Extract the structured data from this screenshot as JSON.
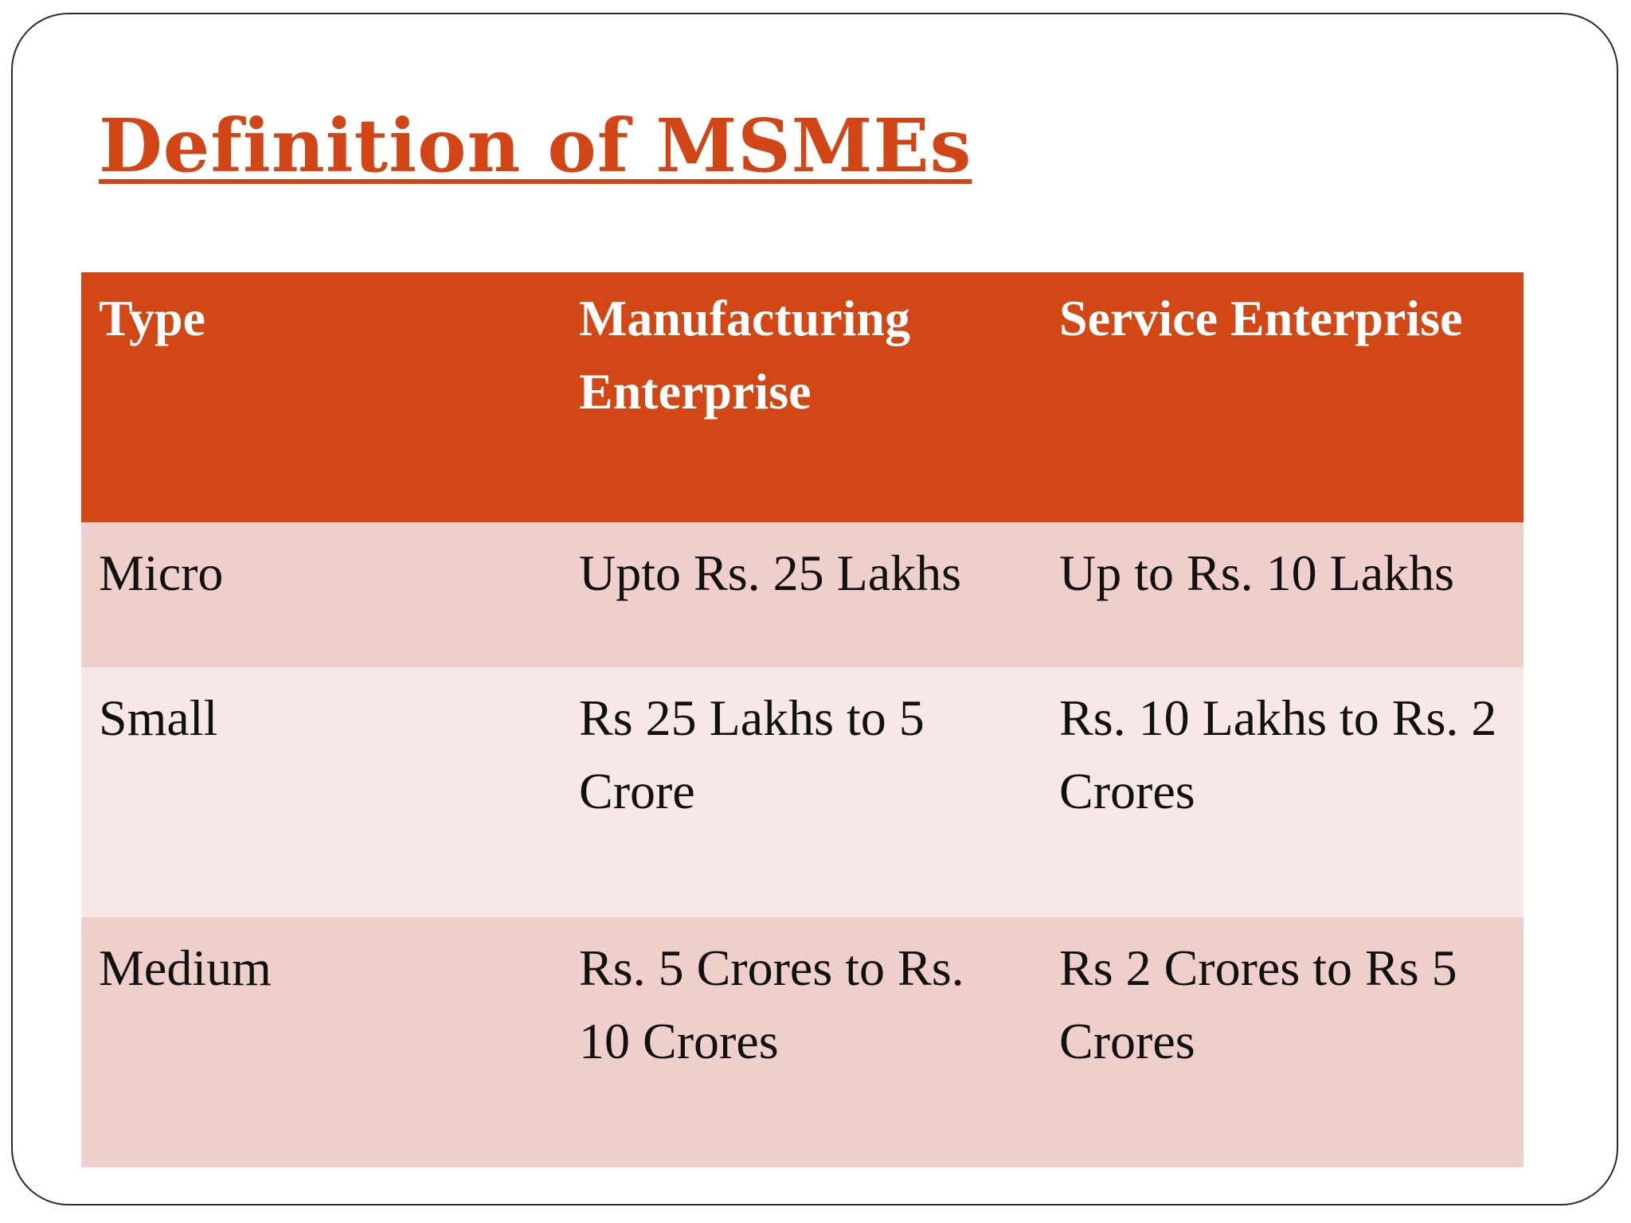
{
  "slide": {
    "title": "Definition of MSMEs"
  },
  "table": {
    "headers": [
      "Type",
      "Manufacturing Enterprise",
      "Service Enterprise"
    ],
    "rows": [
      [
        "Micro",
        "Upto Rs. 25 Lakhs",
        "Up to Rs. 10 Lakhs"
      ],
      [
        "Small",
        "Rs 25 Lakhs to 5 Crore",
        "Rs. 10 Lakhs to Rs. 2 Crores"
      ],
      [
        "Medium",
        "Rs. 5 Crores to Rs. 10 Crores",
        "Rs 2 Crores to Rs 5 Crores"
      ]
    ]
  },
  "colors": {
    "accent": "#d24516",
    "header_bg": "#d24716",
    "row_dark": "#efcfcc",
    "row_light": "#f7e7e6"
  }
}
